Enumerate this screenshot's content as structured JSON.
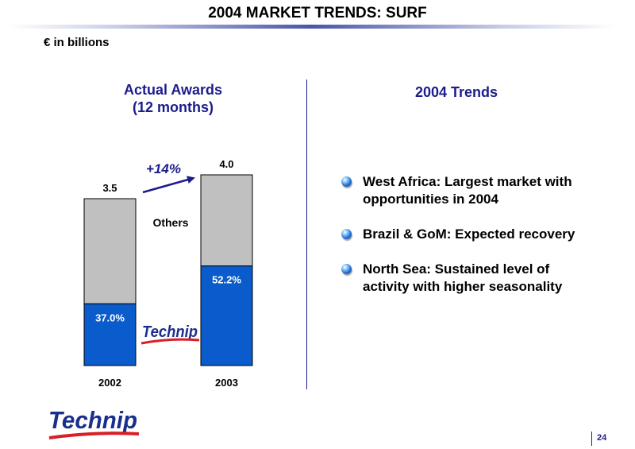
{
  "slide": {
    "title": "2004 MARKET TRENDS: SURF",
    "units": "€ in billions",
    "page_number": "24"
  },
  "chart_data": {
    "type": "bar",
    "stacked": true,
    "title": [
      "Actual Awards",
      "(12 months)"
    ],
    "categories": [
      "2002",
      "2003"
    ],
    "totals": [
      3.5,
      4.0
    ],
    "total_labels": [
      "3.5",
      "4.0"
    ],
    "series": [
      {
        "name": "Technip",
        "share_pct": [
          37.0,
          52.2
        ],
        "share_labels": [
          "37.0%",
          "52.2%"
        ],
        "color": "#0a5ccc"
      },
      {
        "name": "Others",
        "color": "#c0c0c0"
      }
    ],
    "growth_annotation": "+14%",
    "others_label": "Others",
    "series_logo_text": "Technip",
    "ylim": [
      0,
      4.0
    ],
    "grid": false
  },
  "trends": {
    "title": "2004 Trends",
    "items": [
      "West Africa: Largest market with opportunities in 2004",
      "Brazil & GoM: Expected recovery",
      "North Sea: Sustained level of activity with higher seasonality"
    ]
  },
  "brand": {
    "logo_text": "Technip",
    "logo_color": "#1a2f8c",
    "swoosh_color": "#d81f26"
  },
  "colors": {
    "accent": "#1c1c8c",
    "technip_bar": "#0a5ccc",
    "others_bar": "#c0c0c0"
  }
}
